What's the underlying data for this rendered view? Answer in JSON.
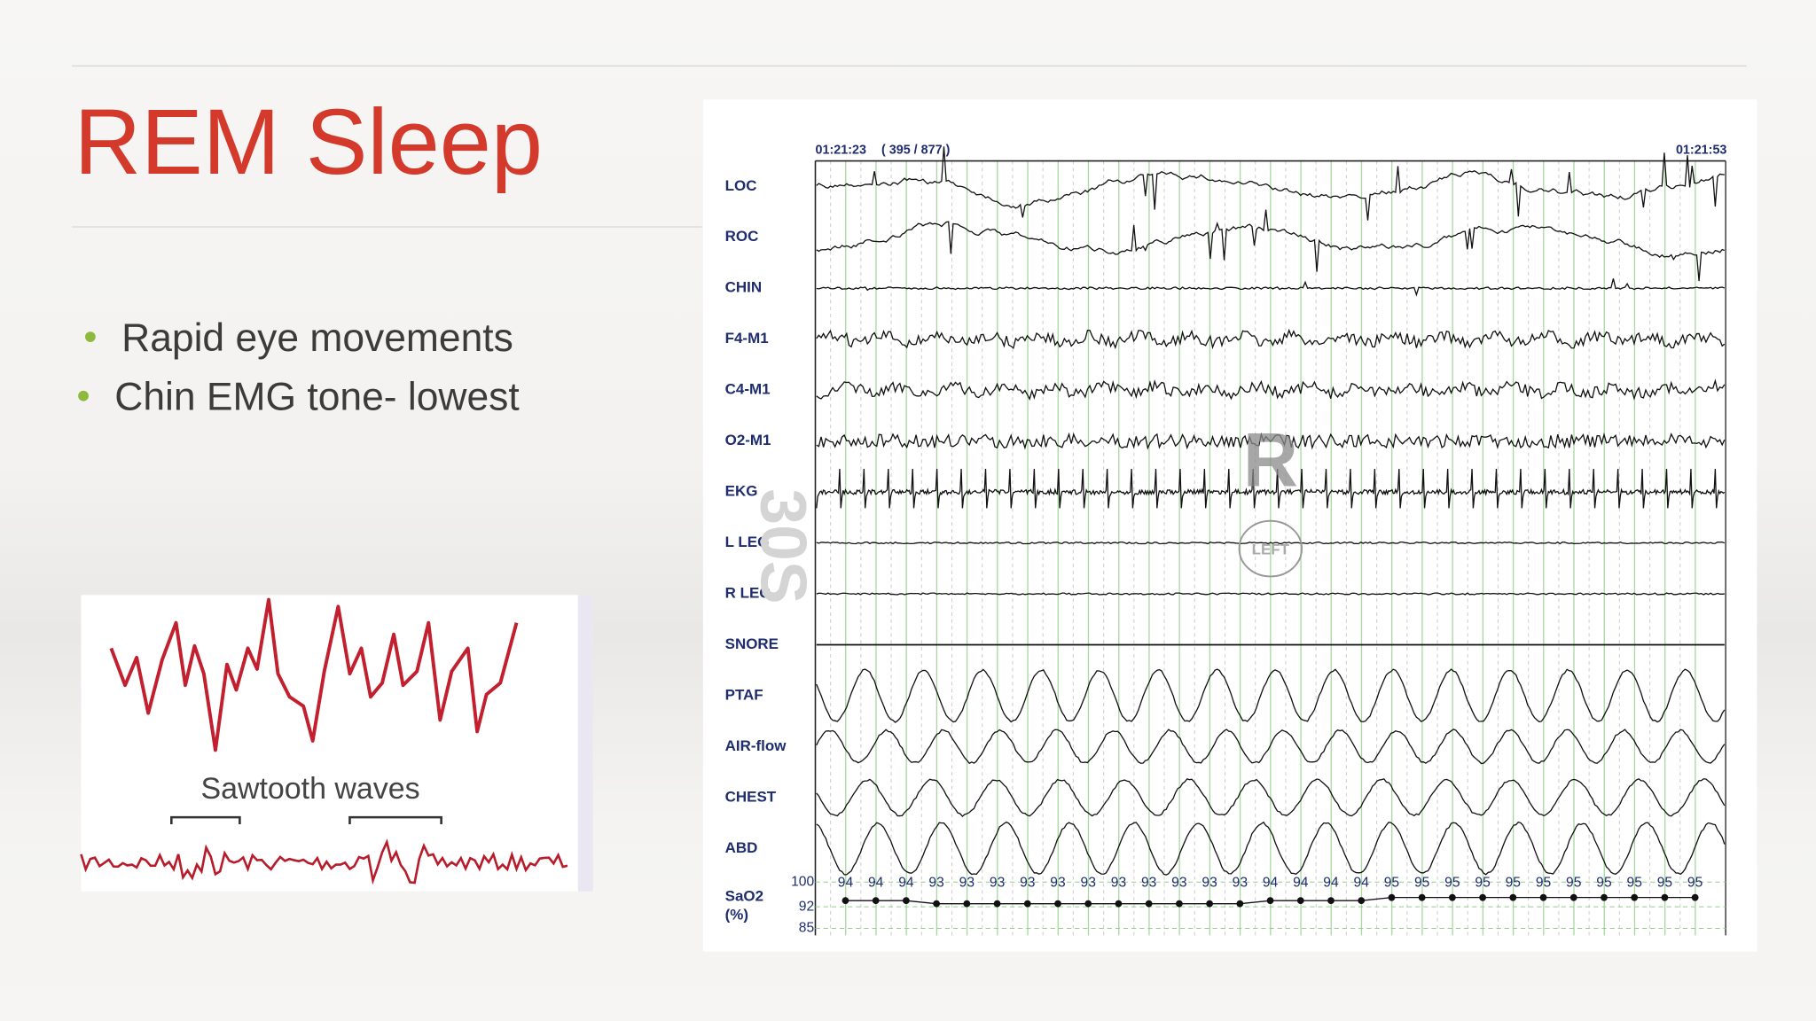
{
  "header": {
    "title": "REM Sleep"
  },
  "bullets": [
    "Rapid eye movements",
    "Chin EMG tone- lowest"
  ],
  "sawtooth_figure": {
    "caption": "Sawtooth waves"
  },
  "psg_figure": {
    "start_time": "01:21:23",
    "epoch": "( 395 / 877 )",
    "end_time": "01:21:53",
    "watermark": "30S",
    "stage_mark": "R",
    "annotation": "LEFT",
    "channels": [
      "LOC",
      "ROC",
      "CHIN",
      "F4-M1",
      "C4-M1",
      "O2-M1",
      "EKG",
      "L LEG",
      "R LEG",
      "SNORE",
      "PTAF",
      "AIR-flow",
      "CHEST",
      "ABD"
    ],
    "sao2": {
      "label": "SaO2",
      "unit": "(%)",
      "scale_ticks": [
        100,
        92,
        85
      ],
      "values": [
        94,
        94,
        94,
        93,
        93,
        93,
        93,
        93,
        93,
        93,
        93,
        93,
        93,
        93,
        94,
        94,
        94,
        94,
        95,
        95,
        95,
        95,
        95,
        95,
        95,
        95,
        95,
        95,
        95
      ]
    }
  }
}
